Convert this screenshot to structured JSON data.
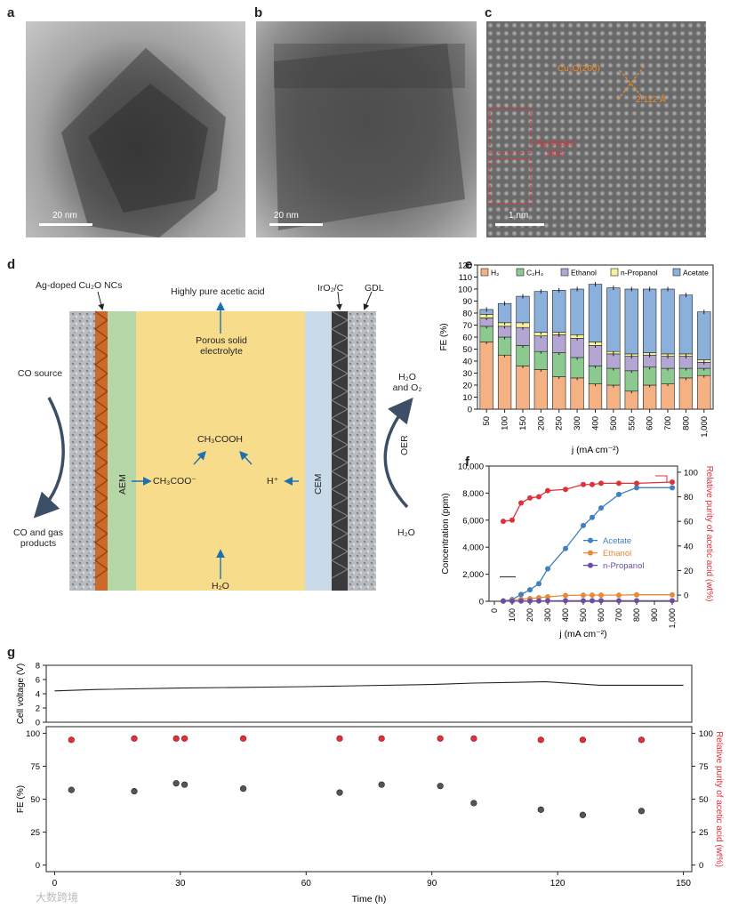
{
  "panel_labels": {
    "a": "a",
    "b": "b",
    "c": "c",
    "d": "d",
    "e": "e",
    "f": "f",
    "g": "g"
  },
  "micrographs": {
    "a": {
      "scale": "20 nm"
    },
    "b": {
      "scale": "20 nm"
    },
    "c": {
      "scale": "1 nm",
      "lattice": "Cu₂O(200)",
      "spacing": "2.112 Å",
      "ag_sites": "Ag-doped\nsites"
    }
  },
  "cell": {
    "labels": {
      "ag_nc": "Ag-doped Cu₂O NCs",
      "acid": "Highly pure acetic acid",
      "iro2": "IrO₂/C",
      "gdl": "GDL",
      "pse": "Porous solid electrolyte",
      "co_source": "CO source",
      "co_out": "CO and gas products",
      "h2o_o2": "H₂O and O₂",
      "oer": "OER",
      "h2o_out": "H₂O",
      "aem": "AEM",
      "cem": "CEM",
      "ch3cooh": "CH₃COOH",
      "ch3coo": "CH₃COO⁻",
      "hplus": "H⁺",
      "h2o_in": "H₂O"
    },
    "colors": {
      "electrolyte": "#f6dc8b",
      "aem": "#b5d7a7",
      "cem": "#c9dbe8",
      "cathode": "#cc6a2b",
      "anode": "#3a3a3a",
      "arrow": "#1f6fb0"
    }
  },
  "chart_data": [
    {
      "id": "e",
      "type": "bar",
      "stacked": true,
      "title": "",
      "xlabel": "j (mA cm⁻²)",
      "ylabel": "FE (%)",
      "ylim": [
        0,
        120
      ],
      "yticks": [
        0,
        10,
        20,
        30,
        40,
        50,
        60,
        70,
        80,
        90,
        100,
        110,
        120
      ],
      "categories": [
        "50",
        "100",
        "150",
        "200",
        "250",
        "300",
        "400",
        "500",
        "550",
        "600",
        "700",
        "800",
        "1,000"
      ],
      "series": [
        {
          "name": "H₂",
          "color": "#f4b183",
          "values": [
            56,
            45,
            36,
            33,
            27,
            26,
            21,
            20,
            15,
            20,
            21,
            26,
            28
          ]
        },
        {
          "name": "C₂H₄",
          "color": "#8cc98f",
          "values": [
            13,
            15,
            17,
            15,
            20,
            17,
            15,
            14,
            17,
            15,
            13,
            8,
            6
          ]
        },
        {
          "name": "Ethanol",
          "color": "#b4a6d2",
          "values": [
            7,
            9,
            15,
            13,
            15,
            16,
            17,
            12,
            12,
            10,
            10,
            10,
            5
          ]
        },
        {
          "name": "n-Propanol",
          "color": "#f7f29a",
          "values": [
            3,
            3,
            4,
            3,
            2,
            3,
            3,
            2,
            2,
            2,
            2,
            2,
            2
          ]
        },
        {
          "name": "Acetate",
          "color": "#8cb0dc",
          "values": [
            4,
            16,
            22,
            34,
            35,
            38,
            48,
            53,
            54,
            53,
            54,
            49,
            40
          ]
        }
      ],
      "totals": [
        83,
        88,
        94,
        98,
        99,
        100,
        104,
        101,
        100,
        100,
        100,
        95,
        81
      ]
    },
    {
      "id": "f",
      "type": "line",
      "xlabel": "j (mA cm⁻²)",
      "ylabel": "Concentration (ppm)",
      "y2label": "Relative purity of acetic acid (wt%)",
      "xlim": [
        0,
        1000
      ],
      "ylim": [
        0,
        10000
      ],
      "y2lim": [
        -5,
        105
      ],
      "xticks": [
        "0",
        "100",
        "200",
        "300",
        "400",
        "500",
        "600",
        "700",
        "800",
        "900",
        "1,000"
      ],
      "yticks": [
        "0",
        "2,000",
        "4,000",
        "6,000",
        "8,000",
        "10,000"
      ],
      "y2ticks": [
        "0",
        "20",
        "40",
        "60",
        "80",
        "100"
      ],
      "x": [
        50,
        100,
        150,
        200,
        250,
        300,
        400,
        500,
        550,
        600,
        700,
        800,
        1000
      ],
      "series": [
        {
          "name": "Acetate",
          "color": "#3f7fc2",
          "axis": "left",
          "values": [
            30,
            120,
            500,
            850,
            1300,
            2400,
            3900,
            5600,
            6200,
            6900,
            7900,
            8400,
            8400
          ]
        },
        {
          "name": "Ethanol",
          "color": "#e8893a",
          "axis": "left",
          "values": [
            20,
            60,
            150,
            200,
            260,
            330,
            430,
            450,
            450,
            450,
            450,
            480,
            480
          ]
        },
        {
          "name": "n-Propanol",
          "color": "#6b4ea3",
          "axis": "left",
          "values": [
            5,
            10,
            15,
            20,
            25,
            30,
            40,
            40,
            40,
            40,
            40,
            40,
            40
          ]
        },
        {
          "name": "Purity",
          "color": "#e0303b",
          "axis": "right",
          "values": [
            60,
            61,
            75,
            79,
            80,
            85,
            86,
            90,
            90,
            91,
            91,
            91,
            92
          ]
        }
      ]
    },
    {
      "id": "g",
      "type": "scatter",
      "xlabel": "Time (h)",
      "xlim": [
        -2,
        152
      ],
      "xticks": [
        0,
        30,
        60,
        90,
        120,
        150
      ],
      "voltage": {
        "ylabel": "Cell voltage (V)",
        "ylim": [
          0,
          8
        ],
        "yticks": [
          0,
          2,
          4,
          6,
          8
        ],
        "x": [
          0,
          10,
          30,
          60,
          90,
          100,
          110,
          117,
          130,
          150
        ],
        "values": [
          4.4,
          4.6,
          4.8,
          5.0,
          5.3,
          5.5,
          5.6,
          5.7,
          5.2,
          5.2
        ]
      },
      "fe": {
        "ylabel": "FE (%)",
        "ylim": [
          -5,
          105
        ],
        "yticks": [
          0,
          25,
          50,
          75,
          100
        ],
        "color": "#555555",
        "x": [
          4,
          19,
          29,
          31,
          45,
          68,
          78,
          92,
          100,
          116,
          126,
          140
        ],
        "values": [
          57,
          56,
          62,
          61,
          58,
          55,
          61,
          60,
          47,
          42,
          38,
          41
        ]
      },
      "purity": {
        "ylabel": "Relative purity of acetic acid (wt%)",
        "ylim": [
          -5,
          105
        ],
        "yticks": [
          0,
          25,
          50,
          75,
          100
        ],
        "color": "#e0303b",
        "x": [
          4,
          19,
          29,
          31,
          45,
          68,
          78,
          92,
          100,
          116,
          126,
          140
        ],
        "values": [
          95,
          96,
          96,
          96,
          96,
          96,
          96,
          96,
          96,
          95,
          95,
          95
        ]
      }
    }
  ],
  "watermark": "大数跨境"
}
